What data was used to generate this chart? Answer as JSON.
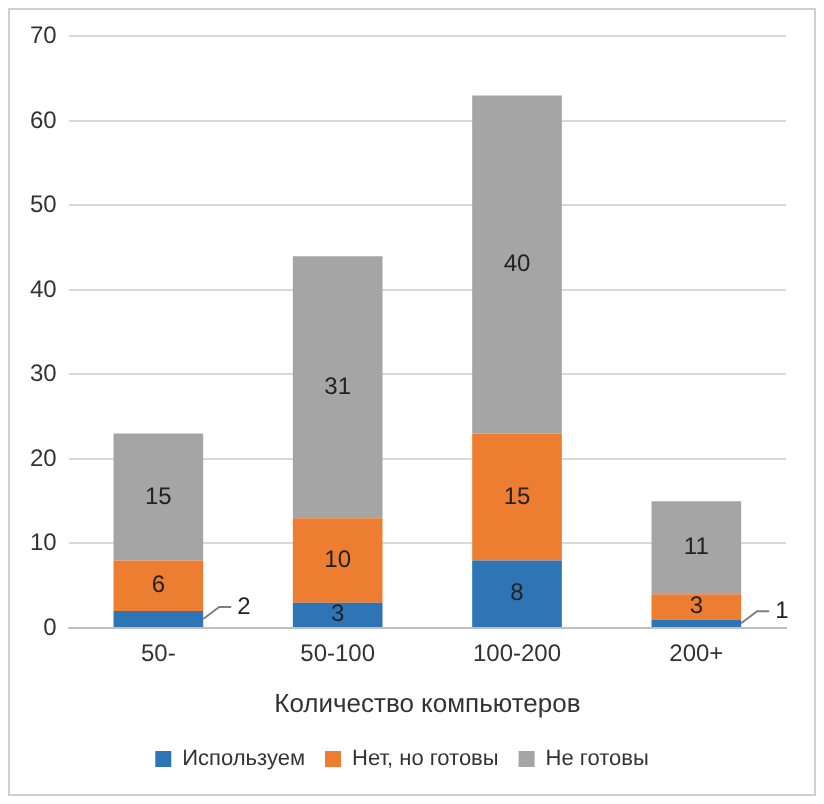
{
  "chart_data": {
    "type": "bar",
    "stacked": true,
    "xlabel": "Количество компьютеров",
    "categories": [
      "50-",
      "50-100",
      "100-200",
      "200+"
    ],
    "series": [
      {
        "name": "Используем",
        "color": "#2e75b6",
        "values": [
          2,
          3,
          8,
          1
        ]
      },
      {
        "name": "Нет, но готовы",
        "color": "#ed7d31",
        "values": [
          6,
          10,
          15,
          3
        ]
      },
      {
        "name": "Не готовы",
        "color": "#a5a5a5",
        "values": [
          15,
          31,
          40,
          11
        ]
      }
    ],
    "ylim": [
      0,
      70
    ],
    "yticks": [
      0,
      10,
      20,
      30,
      40,
      50,
      60,
      70
    ],
    "grid": "y",
    "legend": "bottom",
    "data_labels": true
  }
}
